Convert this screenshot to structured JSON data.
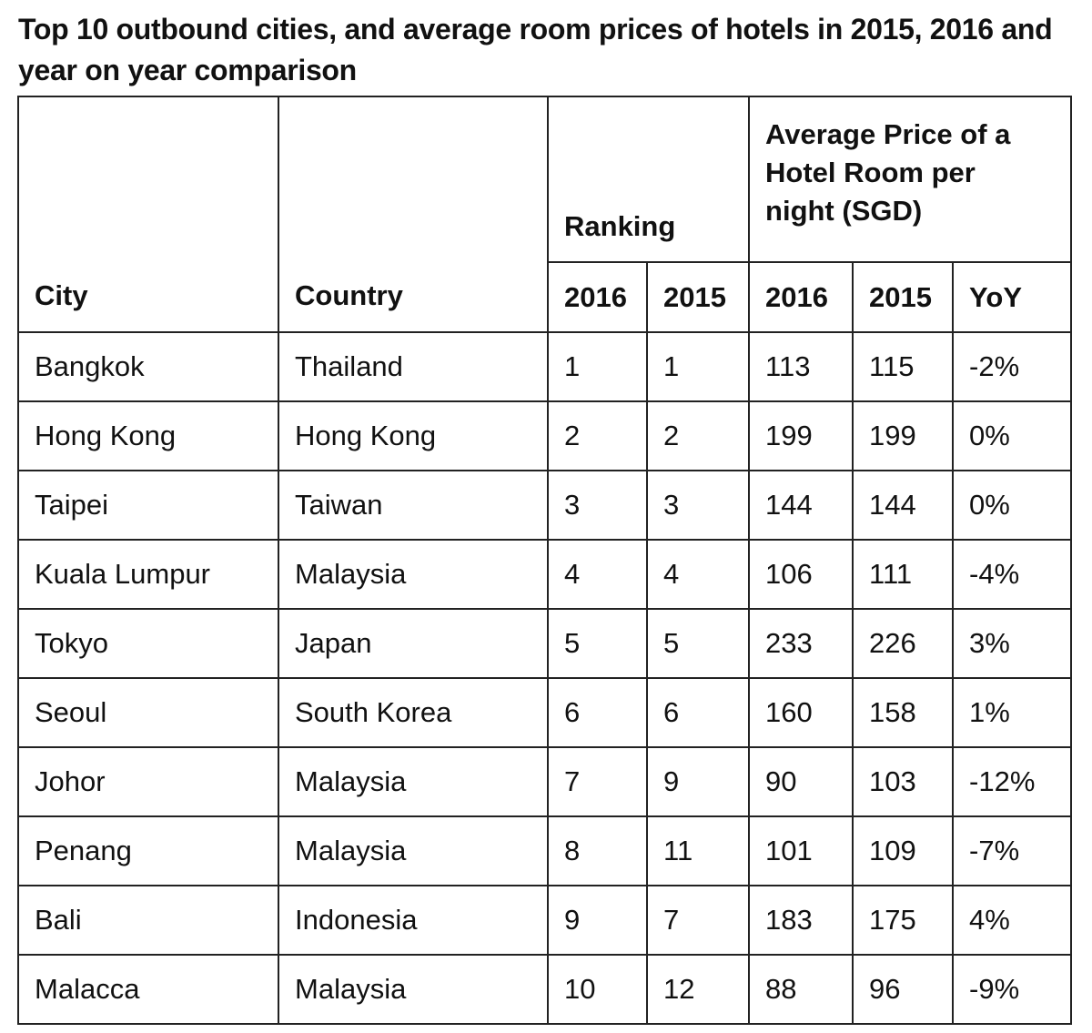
{
  "title": "Top 10 outbound cities, and average room prices of hotels in 2015, 2016 and year on year comparison",
  "table": {
    "headers": {
      "city": "City",
      "country": "Country",
      "ranking": "Ranking",
      "price": "Average Price of a Hotel Room per night (SGD)",
      "rank_2016": "2016",
      "rank_2015": "2015",
      "price_2016": "2016",
      "price_2015": "2015",
      "yoy": "YoY"
    },
    "rows": [
      {
        "city": "Bangkok",
        "country": "Thailand",
        "rank_2016": "1",
        "rank_2015": "1",
        "price_2016": "113",
        "price_2015": "115",
        "yoy": "-2%"
      },
      {
        "city": "Hong Kong",
        "country": "Hong Kong",
        "rank_2016": "2",
        "rank_2015": "2",
        "price_2016": "199",
        "price_2015": "199",
        "yoy": "0%"
      },
      {
        "city": "Taipei",
        "country": "Taiwan",
        "rank_2016": "3",
        "rank_2015": "3",
        "price_2016": "144",
        "price_2015": "144",
        "yoy": "0%"
      },
      {
        "city": "Kuala Lumpur",
        "country": "Malaysia",
        "rank_2016": "4",
        "rank_2015": "4",
        "price_2016": "106",
        "price_2015": "111",
        "yoy": "-4%"
      },
      {
        "city": "Tokyo",
        "country": "Japan",
        "rank_2016": "5",
        "rank_2015": "5",
        "price_2016": "233",
        "price_2015": "226",
        "yoy": "3%"
      },
      {
        "city": "Seoul",
        "country": "South Korea",
        "rank_2016": "6",
        "rank_2015": "6",
        "price_2016": "160",
        "price_2015": "158",
        "yoy": "1%"
      },
      {
        "city": "Johor",
        "country": "Malaysia",
        "rank_2016": "7",
        "rank_2015": "9",
        "price_2016": "90",
        "price_2015": "103",
        "yoy": "-12%"
      },
      {
        "city": "Penang",
        "country": "Malaysia",
        "rank_2016": "8",
        "rank_2015": "11",
        "price_2016": "101",
        "price_2015": "109",
        "yoy": "-7%"
      },
      {
        "city": "Bali",
        "country": "Indonesia",
        "rank_2016": "9",
        "rank_2015": "7",
        "price_2016": "183",
        "price_2015": "175",
        "yoy": "4%"
      },
      {
        "city": "Malacca",
        "country": "Malaysia",
        "rank_2016": "10",
        "rank_2015": "12",
        "price_2016": "88",
        "price_2015": "96",
        "yoy": "-9%"
      }
    ]
  }
}
